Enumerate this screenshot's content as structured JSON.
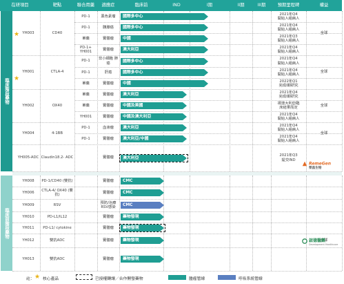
{
  "header": {
    "asset": "在研項目",
    "target": "靶點",
    "usage": "聯合用藥",
    "indication": "適應症",
    "preclinical": "臨床前",
    "ind": "IND",
    "ph1": "I期",
    "ph2": "II期",
    "ph3": "III期",
    "next": "預期里程碑",
    "rights": "權益"
  },
  "groups": {
    "clinical": "臨床階段藥物",
    "preclin": "臨床前階段藥物"
  },
  "rows": [
    {
      "asset": "YH003",
      "target": "CD40",
      "usage": "PD-1",
      "indication": "黑色素瘤",
      "bar": "國際多中心",
      "next": [
        "2021年Q4",
        "開始入組病人"
      ],
      "rights": "全球"
    },
    {
      "asset": "",
      "target": "",
      "usage": "PD-1",
      "indication": "胰腺癌",
      "bar": "國際多中心",
      "next": [
        "2021年Q4",
        "開始入組病人"
      ],
      "rights": ""
    },
    {
      "asset": "",
      "target": "",
      "usage": "單藥",
      "indication": "實體瘤",
      "bar": "中國",
      "next": [
        "2021年Q3",
        "開始入組病人"
      ],
      "rights": ""
    },
    {
      "asset": "",
      "target": "",
      "usage": "PD-1+ YH001",
      "indication": "實體瘤",
      "bar": "澳大利亞",
      "next": [
        "2021年Q4",
        "開始入組病人"
      ],
      "rights": ""
    },
    {
      "asset": "YH001",
      "target": "CTLA-4",
      "usage": "PD-1",
      "indication": "非小細胞 肺癌",
      "bar": "國際多中心",
      "next": [
        "2021年Q4",
        "開始入組病人"
      ],
      "rights": "全球"
    },
    {
      "asset": "",
      "target": "",
      "usage": "PD-1",
      "indication": "肝癌",
      "bar": "國際多中心",
      "next": [
        "2021年Q4",
        "開始入組病人"
      ],
      "rights": ""
    },
    {
      "asset": "",
      "target": "",
      "usage": "單藥",
      "indication": "實體瘤",
      "bar": "中國",
      "next": [
        "2022年Q1",
        "完成I期研究"
      ],
      "rights": ""
    },
    {
      "asset": "YH002",
      "target": "OX40",
      "usage": "單藥",
      "indication": "實體瘤",
      "bar": "澳大利亞",
      "next": [
        "2021年Q4",
        "完成I期研究"
      ],
      "rights": "全球"
    },
    {
      "asset": "",
      "target": "",
      "usage": "單藥",
      "indication": "實體瘤",
      "bar": "中國及美國",
      "next": [
        "視澳大利亞臨",
        "床結果而定"
      ],
      "rights": ""
    },
    {
      "asset": "",
      "target": "",
      "usage": "YH001",
      "indication": "實體瘤",
      "bar": "中國及澳大利亞",
      "next": [
        "2021年Q4",
        "開始入組病人"
      ],
      "rights": ""
    },
    {
      "asset": "YH004",
      "target": "4-1BB",
      "usage": "PD-1",
      "indication": "血液瘤",
      "bar": "澳大利亞",
      "next": [
        "2021年Q4",
        "開始入組病人"
      ],
      "rights": "全球"
    },
    {
      "asset": "",
      "target": "",
      "usage": "PD-1",
      "indication": "實體瘤",
      "bar": "澳大利亞/中國",
      "next": [
        "2021年Q4",
        "開始入組病人"
      ],
      "rights": ""
    },
    {
      "asset": "YH005-ADC",
      "target": "Claudin18.2- ADC",
      "usage": "",
      "indication": "實體瘤",
      "bar": "澳大利亞",
      "next": [
        "2021年Q3",
        "提交IND"
      ],
      "rights": ""
    },
    {
      "asset": "YH008",
      "target": "PD-1/CD40 (雙抗)",
      "usage": "",
      "indication": "實體瘤",
      "bar": "CMC",
      "next": [
        "",
        ""
      ],
      "rights": ""
    },
    {
      "asset": "YH006",
      "target": "CTLA-4/ OX40 (雙抗)",
      "usage": "",
      "indication": "實體瘤",
      "bar": "CMC",
      "next": [
        "",
        ""
      ],
      "rights": ""
    },
    {
      "asset": "YH009",
      "target": "RSV",
      "usage": "",
      "indication": "預防/治療 RSV感染",
      "bar": "CMC",
      "next": [
        "",
        ""
      ],
      "rights": ""
    },
    {
      "asset": "YH010",
      "target": "PD-L1/IL12",
      "usage": "",
      "indication": "實體瘤",
      "bar": "藥物發現",
      "next": [
        "",
        ""
      ],
      "rights": ""
    },
    {
      "asset": "YH011",
      "target": "PD-L1/ cytokine",
      "usage": "",
      "indication": "實體瘤",
      "bar": "藥物發現",
      "next": [
        "",
        ""
      ],
      "rights": ""
    },
    {
      "asset": "YH012",
      "target": "雙抗ADC",
      "usage": "",
      "indication": "實體瘤",
      "bar": "藥物發現",
      "next": [
        "",
        ""
      ],
      "rights": "全球"
    },
    {
      "asset": "YH013",
      "target": "雙抗ADC",
      "usage": "",
      "indication": "實體瘤",
      "bar": "藥物發現",
      "next": [
        "",
        ""
      ],
      "rights": ""
    }
  ],
  "logos": {
    "remegen": "RemeGen",
    "remegen_cn": "榮昌生物",
    "dh_cn": "啟德醫藥",
    "dh_en": "Development Healthcare"
  },
  "legend": {
    "note": "註：",
    "core": "核心產品",
    "licensed": "已授權轉讓／合作開發藥物",
    "oncology": "腫瘤管線",
    "respiratory": "呼吸系統管線"
  },
  "colors": {
    "teal": "#1f9e93",
    "header": "#21a39a",
    "blue": "#5a7fc1",
    "star": "#e8b318"
  }
}
